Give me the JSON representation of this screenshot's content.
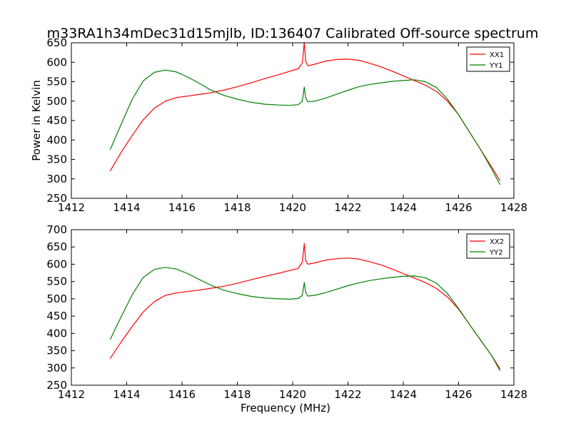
{
  "figure": {
    "title": "m33RA1h34mDec31d15mjlb, ID:136407 Calibrated Off-source spectrum"
  },
  "chart_data": [
    {
      "type": "line",
      "title": "m33RA1h34mDec31d15mjlb, ID:136407 Calibrated Off-source spectrum",
      "xlabel": "",
      "ylabel": "Power in Kelvin",
      "xlim": [
        1412,
        1428
      ],
      "ylim": [
        250,
        650
      ],
      "xticks": [
        1412,
        1414,
        1416,
        1418,
        1420,
        1422,
        1424,
        1426,
        1428
      ],
      "yticks": [
        250,
        300,
        350,
        400,
        450,
        500,
        550,
        600,
        650
      ],
      "legend": "top-right",
      "grid": false,
      "series": [
        {
          "name": "XX1",
          "color": "#ff0000",
          "x": [
            1413.4,
            1413.8,
            1414.2,
            1414.6,
            1415.0,
            1415.4,
            1415.8,
            1416.2,
            1416.6,
            1417.0,
            1417.5,
            1418.0,
            1418.5,
            1419.0,
            1419.5,
            1419.9,
            1420.2,
            1420.35,
            1420.42,
            1420.47,
            1420.55,
            1420.8,
            1421.2,
            1421.6,
            1422.0,
            1422.4,
            1422.8,
            1423.2,
            1423.6,
            1424.0,
            1424.4,
            1424.8,
            1425.2,
            1425.6,
            1426.0,
            1426.4,
            1426.8,
            1427.2,
            1427.5
          ],
          "y": [
            320,
            368,
            412,
            452,
            482,
            500,
            509,
            513,
            517,
            521,
            528,
            537,
            547,
            558,
            568,
            577,
            583,
            598,
            650,
            604,
            591,
            595,
            603,
            607,
            608,
            605,
            597,
            588,
            577,
            565,
            553,
            541,
            525,
            500,
            465,
            420,
            375,
            330,
            295
          ]
        },
        {
          "name": "YY1",
          "color": "#008000",
          "x": [
            1413.4,
            1413.8,
            1414.2,
            1414.6,
            1415.0,
            1415.4,
            1415.8,
            1416.2,
            1416.6,
            1417.0,
            1417.5,
            1418.0,
            1418.5,
            1419.0,
            1419.5,
            1419.9,
            1420.2,
            1420.35,
            1420.42,
            1420.47,
            1420.55,
            1420.8,
            1421.2,
            1421.6,
            1422.0,
            1422.4,
            1422.8,
            1423.2,
            1423.6,
            1424.0,
            1424.4,
            1424.8,
            1425.2,
            1425.6,
            1426.0,
            1426.4,
            1426.8,
            1427.2,
            1427.5
          ],
          "y": [
            375,
            440,
            505,
            552,
            574,
            580,
            575,
            562,
            547,
            530,
            515,
            505,
            497,
            492,
            490,
            489,
            491,
            500,
            536,
            510,
            498,
            500,
            508,
            518,
            528,
            537,
            543,
            547,
            551,
            553,
            555,
            550,
            535,
            505,
            465,
            420,
            375,
            325,
            285
          ]
        }
      ]
    },
    {
      "type": "line",
      "title": "",
      "xlabel": "Frequency (MHz)",
      "ylabel": "",
      "xlim": [
        1412,
        1428
      ],
      "ylim": [
        250,
        700
      ],
      "xticks": [
        1412,
        1414,
        1416,
        1418,
        1420,
        1422,
        1424,
        1426,
        1428
      ],
      "yticks": [
        250,
        300,
        350,
        400,
        450,
        500,
        550,
        600,
        650,
        700
      ],
      "legend": "top-right",
      "grid": false,
      "series": [
        {
          "name": "XX2",
          "color": "#ff0000",
          "x": [
            1413.4,
            1413.8,
            1414.2,
            1414.6,
            1415.0,
            1415.4,
            1415.8,
            1416.2,
            1416.6,
            1417.0,
            1417.5,
            1418.0,
            1418.5,
            1419.0,
            1419.5,
            1419.9,
            1420.2,
            1420.35,
            1420.42,
            1420.47,
            1420.55,
            1420.8,
            1421.2,
            1421.6,
            1422.0,
            1422.4,
            1422.8,
            1423.2,
            1423.6,
            1424.0,
            1424.4,
            1424.8,
            1425.2,
            1425.6,
            1426.0,
            1426.4,
            1426.8,
            1427.2,
            1427.5
          ],
          "y": [
            327,
            375,
            420,
            462,
            492,
            510,
            517,
            521,
            525,
            530,
            536,
            545,
            555,
            565,
            574,
            582,
            588,
            606,
            660,
            612,
            600,
            604,
            612,
            616,
            618,
            615,
            607,
            598,
            586,
            573,
            560,
            547,
            530,
            505,
            470,
            425,
            380,
            335,
            297
          ]
        },
        {
          "name": "YY2",
          "color": "#008000",
          "x": [
            1413.4,
            1413.8,
            1414.2,
            1414.6,
            1415.0,
            1415.4,
            1415.8,
            1416.2,
            1416.6,
            1417.0,
            1417.5,
            1418.0,
            1418.5,
            1419.0,
            1419.5,
            1419.9,
            1420.2,
            1420.35,
            1420.42,
            1420.47,
            1420.55,
            1420.8,
            1421.2,
            1421.6,
            1422.0,
            1422.4,
            1422.8,
            1423.2,
            1423.6,
            1424.0,
            1424.4,
            1424.8,
            1425.2,
            1425.6,
            1426.0,
            1426.4,
            1426.8,
            1427.2,
            1427.5
          ],
          "y": [
            382,
            448,
            512,
            562,
            585,
            591,
            586,
            573,
            557,
            541,
            525,
            515,
            507,
            502,
            500,
            499,
            501,
            510,
            547,
            520,
            508,
            510,
            518,
            528,
            538,
            546,
            553,
            558,
            562,
            565,
            566,
            561,
            545,
            515,
            472,
            425,
            380,
            335,
            292
          ]
        }
      ]
    }
  ]
}
